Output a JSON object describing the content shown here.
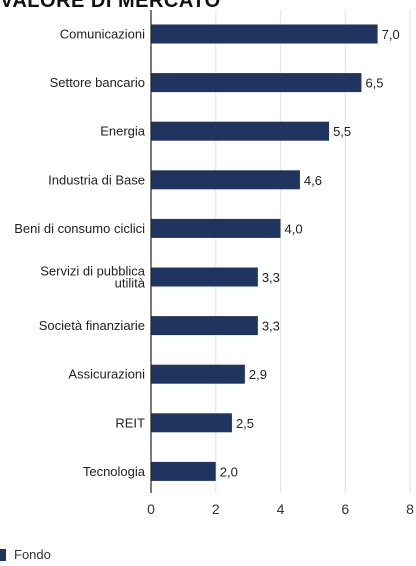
{
  "chart_data": {
    "type": "bar",
    "orientation": "horizontal",
    "title": "VALORE DI MERCATO",
    "categories": [
      [
        "Comunicazioni"
      ],
      [
        "Settore bancario"
      ],
      [
        "Energia"
      ],
      [
        "Industria di Base"
      ],
      [
        "Beni di consumo ciclici"
      ],
      [
        "Servizi di pubblica",
        "utilità"
      ],
      [
        "Società finanziarie"
      ],
      [
        "Assicurazioni"
      ],
      [
        "REIT"
      ],
      [
        "Tecnologia"
      ]
    ],
    "series": [
      {
        "name": "Fondo",
        "color": "#1f3560",
        "values": [
          7.0,
          6.5,
          5.5,
          4.6,
          4.0,
          3.3,
          3.3,
          2.9,
          2.5,
          2.0
        ],
        "value_labels": [
          "7,0",
          "6,5",
          "5,5",
          "4,6",
          "4,0",
          "3,3",
          "3,3",
          "2,9",
          "2,5",
          "2,0"
        ]
      }
    ],
    "xlim": [
      0,
      8
    ],
    "xticks": [
      0,
      2,
      4,
      6,
      8
    ],
    "grid": true,
    "legend_position": "bottom-left"
  }
}
